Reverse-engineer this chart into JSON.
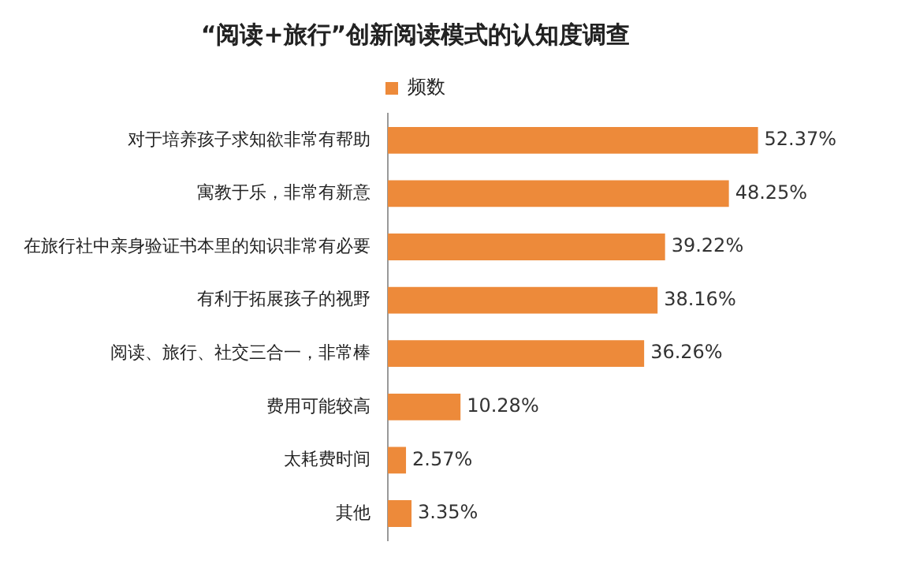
{
  "chart_data": {
    "type": "bar",
    "orientation": "horizontal",
    "title": "“阅读+旅行”创新阅读模式的认知度调查",
    "categories": [
      "对于培养孩子求知欲非常有帮助",
      "寓教于乐，非常有新意",
      "在旅行社中亲身验证书本里的知识非常有必要",
      "有利于拓展孩子的视野",
      "阅读、旅行、社交三合一，非常棒",
      "费用可能较高",
      "太耗费时间",
      "其他"
    ],
    "series": [
      {
        "name": "频数",
        "color": "#ed8a3a",
        "values": [
          52.37,
          48.25,
          39.22,
          38.16,
          36.26,
          10.28,
          2.57,
          3.35
        ],
        "value_labels": [
          "52.37%",
          "48.25%",
          "39.22%",
          "38.16%",
          "36.26%",
          "10.28%",
          "2.57%",
          "3.35%"
        ]
      }
    ],
    "legend": "top"
  }
}
